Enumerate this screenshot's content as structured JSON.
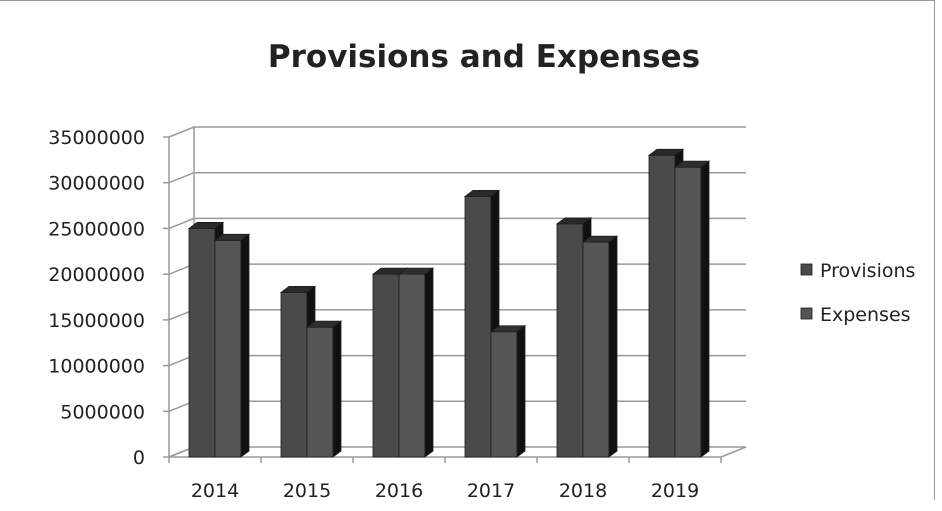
{
  "chart_data": {
    "type": "bar",
    "title": "Provisions and Expenses",
    "categories": [
      "2014",
      "2015",
      "2016",
      "2017",
      "2018",
      "2019"
    ],
    "series": [
      {
        "name": "Provisions",
        "values": [
          25000000,
          18000000,
          20000000,
          28500000,
          25500000,
          33000000
        ],
        "color": "#4a4a4a"
      },
      {
        "name": "Expenses",
        "values": [
          23700000,
          14200000,
          20000000,
          13700000,
          23500000,
          31700000
        ],
        "color": "#555555"
      }
    ],
    "yticks": [
      "0",
      "5000000",
      "10000000",
      "15000000",
      "20000000",
      "25000000",
      "30000000",
      "35000000"
    ],
    "ylim": [
      0,
      35000000
    ],
    "grid": true,
    "legend_position": "right",
    "xlabel": "",
    "ylabel": ""
  }
}
